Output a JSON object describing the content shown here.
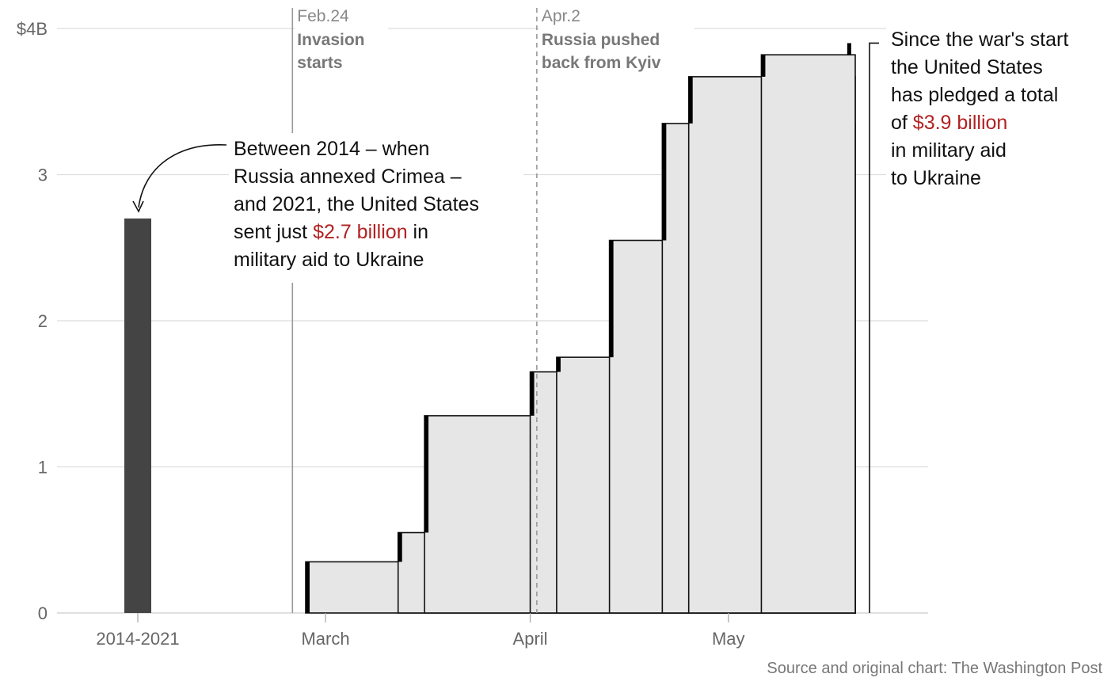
{
  "chart_data": {
    "type": "bar",
    "title": "",
    "xlabel": "",
    "ylabel": "",
    "ylim": [
      0,
      4
    ],
    "y_ticks": [
      "0",
      "1",
      "2",
      "3",
      "$4B"
    ],
    "x_tick_labels": [
      "2014-2021",
      "March",
      "April",
      "May"
    ],
    "grid": "horizontal",
    "historical_bar": {
      "category": "2014-2021",
      "value": 2.7,
      "color": "#444444"
    },
    "cumulative_pledges": [
      {
        "date": "2022-02-26",
        "cumulative": 0.35
      },
      {
        "date": "2022-03-12",
        "cumulative": 0.55
      },
      {
        "date": "2022-03-16",
        "cumulative": 1.35
      },
      {
        "date": "2022-04-01",
        "cumulative": 1.65
      },
      {
        "date": "2022-04-05",
        "cumulative": 1.75
      },
      {
        "date": "2022-04-13",
        "cumulative": 2.55
      },
      {
        "date": "2022-04-21",
        "cumulative": 3.35
      },
      {
        "date": "2022-04-25",
        "cumulative": 3.67
      },
      {
        "date": "2022-05-06",
        "cumulative": 3.82
      },
      {
        "date": "2022-05-19",
        "cumulative": 3.9
      }
    ],
    "events": [
      {
        "date": "2022-02-24",
        "label_date": "Feb.24",
        "label_lines": [
          "Invasion",
          "starts"
        ],
        "style": "solid"
      },
      {
        "date": "2022-04-02",
        "label_date": "Apr.2",
        "label_lines": [
          "Russia pushed",
          "back from Kyiv"
        ],
        "style": "dashed"
      }
    ],
    "annotations": {
      "left": [
        [
          {
            "t": "Between 2014 – when"
          }
        ],
        [
          {
            "t": "Russia annexed Crimea –"
          }
        ],
        [
          {
            "t": "and 2021, the United States"
          }
        ],
        [
          {
            "t": "sent just "
          },
          {
            "t": "$2.7 billion",
            "hl": true
          },
          {
            "t": " in"
          }
        ],
        [
          {
            "t": "military aid to Ukraine"
          }
        ]
      ],
      "right": [
        [
          {
            "t": "Since the war's start"
          }
        ],
        [
          {
            "t": "the United States"
          }
        ],
        [
          {
            "t": "has pledged a total"
          }
        ],
        [
          {
            "t": "of "
          },
          {
            "t": "$3.9 billion",
            "hl": true
          }
        ],
        [
          {
            "t": "in military aid"
          }
        ],
        [
          {
            "t": "to Ukraine"
          }
        ]
      ]
    },
    "colors": {
      "highlight": "#b22222",
      "step_fill": "#e6e6e6",
      "grid": "#dddddd",
      "historical_bar": "#444444",
      "marker": "#000000"
    }
  },
  "source": "Source and original chart: The Washington Post"
}
